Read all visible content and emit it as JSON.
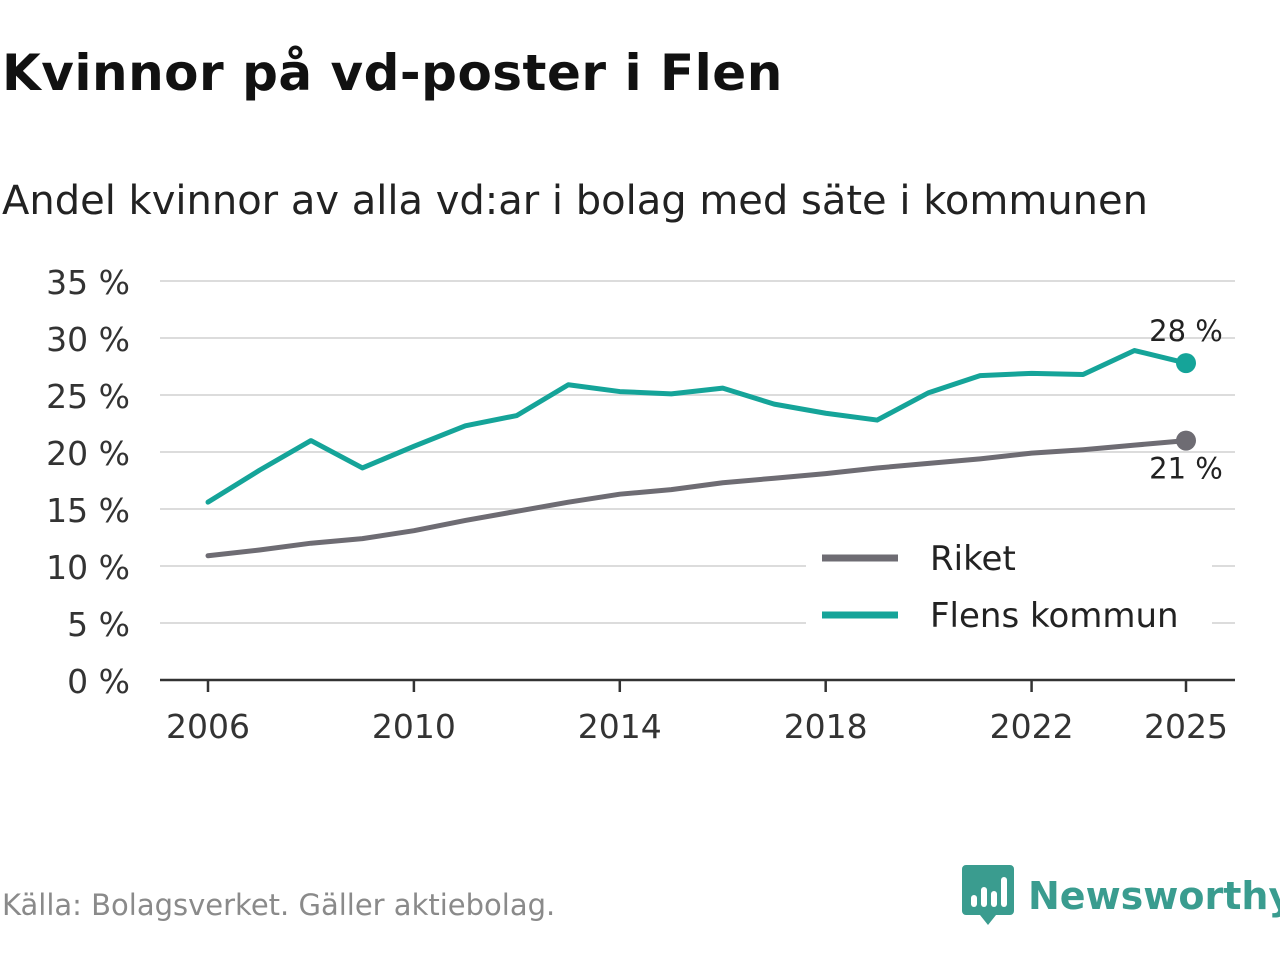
{
  "title": "Kvinnor på vd-poster i Flen",
  "subtitle": "Andel kvinnor av alla vd:ar i bolag med säte i kommunen",
  "source": "Källa: Bolagsverket. Gäller aktiebolag.",
  "brand": {
    "name": "Newsworthy",
    "color": "#3a9c8f"
  },
  "chart_data": {
    "type": "line",
    "title": "Kvinnor på vd-poster i Flen",
    "subtitle": "Andel kvinnor av alla vd:ar i bolag med säte i kommunen",
    "xlabel": "",
    "ylabel": "",
    "xlim": [
      2006,
      2025
    ],
    "ylim": [
      0,
      35
    ],
    "yticks": [
      0,
      5,
      10,
      15,
      20,
      25,
      30,
      35
    ],
    "ytick_labels": [
      "0 %",
      "5 %",
      "10 %",
      "15 %",
      "20 %",
      "25 %",
      "30 %",
      "35 %"
    ],
    "xticks": [
      2006,
      2010,
      2014,
      2018,
      2022,
      2025
    ],
    "xtick_labels": [
      "2006",
      "2010",
      "2014",
      "2018",
      "2022",
      "2025"
    ],
    "grid": true,
    "legend_position": "bottom-right",
    "x": [
      2006,
      2007,
      2008,
      2009,
      2010,
      2011,
      2012,
      2013,
      2014,
      2015,
      2016,
      2017,
      2018,
      2019,
      2020,
      2021,
      2022,
      2023,
      2024,
      2025
    ],
    "series": [
      {
        "name": "Riket",
        "color": "#6e6c73",
        "values": [
          10.9,
          11.4,
          12.0,
          12.4,
          13.1,
          14.0,
          14.8,
          15.6,
          16.3,
          16.7,
          17.3,
          17.7,
          18.1,
          18.6,
          19.0,
          19.4,
          19.9,
          20.2,
          20.6,
          21.0
        ],
        "end_label": "21 %"
      },
      {
        "name": "Flens kommun",
        "color": "#15a499",
        "values": [
          15.6,
          18.4,
          21.0,
          18.6,
          20.5,
          22.3,
          23.2,
          25.9,
          25.3,
          25.1,
          25.6,
          24.2,
          23.4,
          22.8,
          25.2,
          26.7,
          26.9,
          26.8,
          28.9,
          27.8
        ],
        "end_label": "28 %"
      }
    ]
  }
}
